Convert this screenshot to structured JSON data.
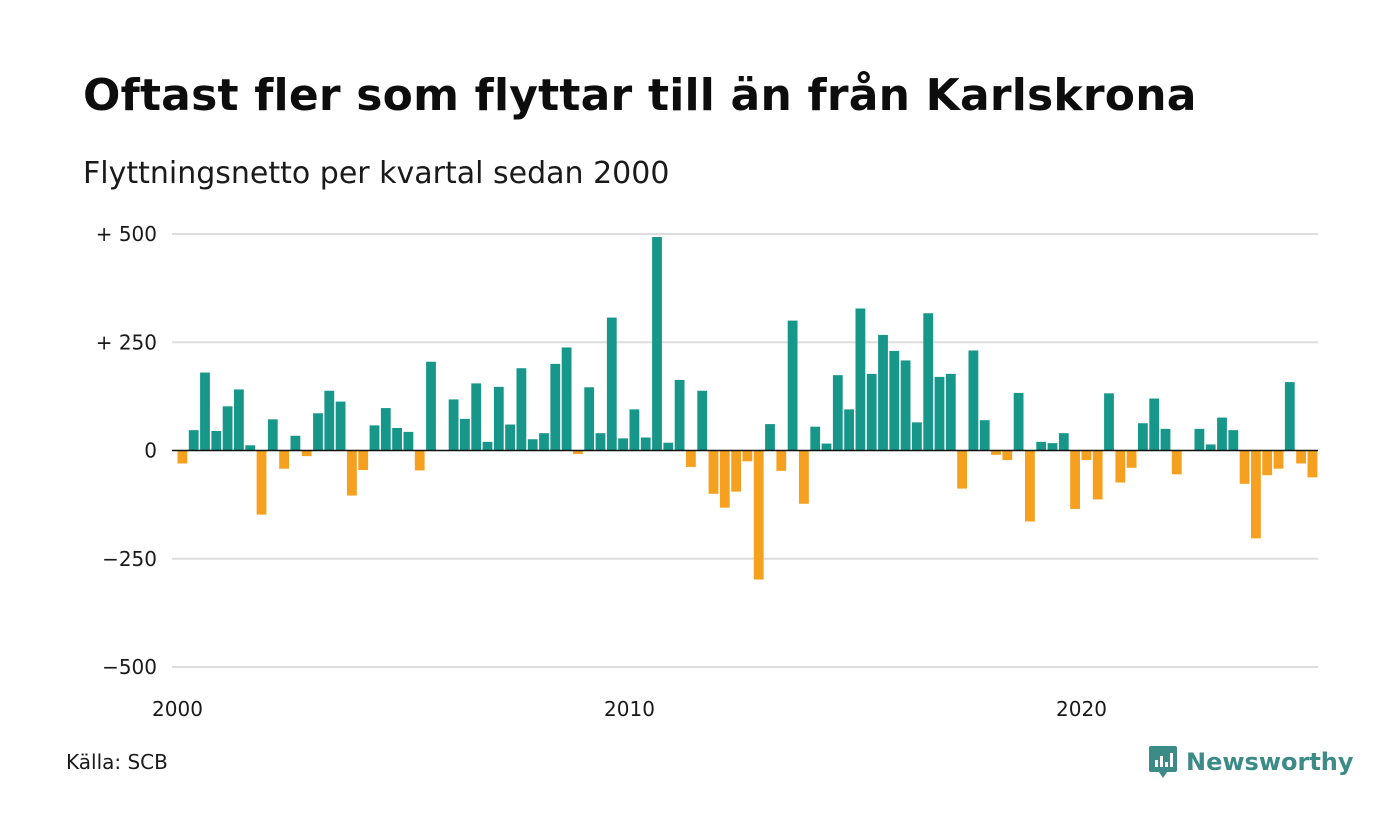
{
  "title": "Oftast fler som flyttar till än från Karlskrona",
  "subtitle": "Flyttningsnetto per kvartal sedan 2000",
  "source": "Källa: SCB",
  "brand": {
    "name": "Newsworthy",
    "icon": "newsworthy-logo-icon",
    "color": "#3c8b87"
  },
  "chart_data": {
    "type": "bar",
    "title": "Oftast fler som flyttar till än från Karlskrona",
    "subtitle": "Flyttningsnetto per kvartal sedan 2000",
    "xlabel": "",
    "ylabel": "",
    "ylim": [
      -500,
      500
    ],
    "yticks": [
      500,
      250,
      0,
      -250,
      -500
    ],
    "ytick_labels": [
      "+ 500",
      "+ 250",
      "0",
      "−250",
      "−500"
    ],
    "xticks": [
      2000,
      2010,
      2020
    ],
    "xtick_labels": [
      "2000",
      "2010",
      "2020"
    ],
    "grid": true,
    "legend": "none",
    "colors": {
      "positive": "#17968a",
      "negative": "#f6a01f",
      "grid": "#dddddd",
      "zero_line": "#111111"
    },
    "series": [
      {
        "categories": [
          "2000 Q1",
          "2000 Q2",
          "2000 Q3",
          "2000 Q4",
          "2001 Q1",
          "2001 Q2",
          "2001 Q3",
          "2001 Q4",
          "2002 Q1",
          "2002 Q2",
          "2002 Q3",
          "2002 Q4",
          "2003 Q1",
          "2003 Q2",
          "2003 Q3",
          "2003 Q4",
          "2004 Q1",
          "2004 Q2",
          "2004 Q3",
          "2004 Q4",
          "2005 Q1",
          "2005 Q2",
          "2005 Q3",
          "2005 Q4",
          "2006 Q1",
          "2006 Q2",
          "2006 Q3",
          "2006 Q4",
          "2007 Q1",
          "2007 Q2",
          "2007 Q3",
          "2007 Q4",
          "2008 Q1",
          "2008 Q2",
          "2008 Q3",
          "2008 Q4",
          "2009 Q1",
          "2009 Q2",
          "2009 Q3",
          "2009 Q4",
          "2010 Q1",
          "2010 Q2",
          "2010 Q3",
          "2010 Q4",
          "2011 Q1",
          "2011 Q2",
          "2011 Q3",
          "2011 Q4",
          "2012 Q1",
          "2012 Q2",
          "2012 Q3",
          "2012 Q4",
          "2013 Q1",
          "2013 Q2",
          "2013 Q3",
          "2013 Q4",
          "2014 Q1",
          "2014 Q2",
          "2014 Q3",
          "2014 Q4",
          "2015 Q1",
          "2015 Q2",
          "2015 Q3",
          "2015 Q4",
          "2016 Q1",
          "2016 Q2",
          "2016 Q3",
          "2016 Q4",
          "2017 Q1",
          "2017 Q2",
          "2017 Q3",
          "2017 Q4",
          "2018 Q1",
          "2018 Q2",
          "2018 Q3",
          "2018 Q4",
          "2019 Q1",
          "2019 Q2",
          "2019 Q3",
          "2019 Q4",
          "2020 Q1",
          "2020 Q2",
          "2020 Q3",
          "2020 Q4",
          "2021 Q1",
          "2021 Q2",
          "2021 Q3",
          "2021 Q4",
          "2022 Q1",
          "2022 Q2",
          "2022 Q3",
          "2022 Q4",
          "2023 Q1",
          "2023 Q2",
          "2023 Q3",
          "2023 Q4",
          "2024 Q1",
          "2024 Q2",
          "2024 Q3",
          "2024 Q4",
          "2025 Q1"
        ],
        "values": [
          -30,
          47,
          180,
          45,
          102,
          141,
          12,
          -148,
          72,
          -42,
          34,
          -13,
          86,
          138,
          113,
          -104,
          -45,
          58,
          98,
          52,
          43,
          -46,
          205,
          0,
          118,
          73,
          155,
          20,
          147,
          60,
          190,
          26,
          40,
          200,
          238,
          -8,
          146,
          40,
          307,
          28,
          95,
          30,
          493,
          18,
          163,
          -38,
          138,
          -100,
          -132,
          -95,
          -25,
          -298,
          61,
          -47,
          300,
          -123,
          55,
          16,
          174,
          95,
          328,
          177,
          267,
          230,
          208,
          65,
          317,
          170,
          177,
          -88,
          231,
          70,
          -10,
          -22,
          133,
          -164,
          20,
          17,
          40,
          -135,
          -22,
          -113,
          132,
          -74,
          -40,
          63,
          120,
          50,
          -55,
          0,
          50,
          14,
          76,
          47,
          -77,
          -203,
          -57,
          -42,
          158,
          -30,
          -62
        ]
      }
    ]
  }
}
